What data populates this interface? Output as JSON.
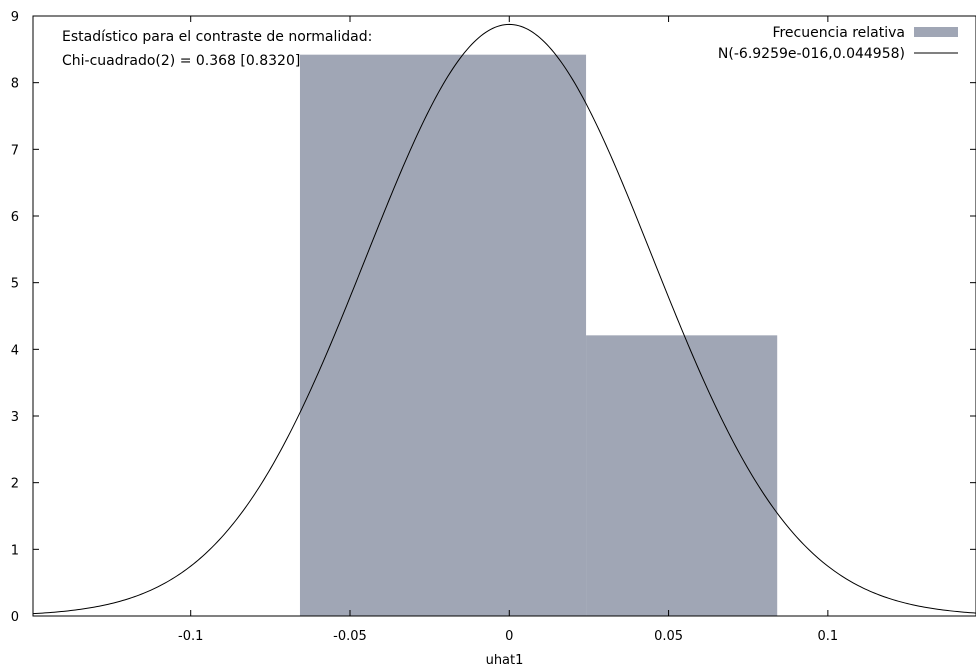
{
  "chart_data": {
    "type": "histogram",
    "xlabel": "uhat1",
    "ylabel": "",
    "xlim": [
      -0.1495,
      0.1465
    ],
    "ylim": [
      0,
      9
    ],
    "x_ticks": [
      -0.1,
      -0.05,
      0,
      0.05,
      0.1
    ],
    "x_tick_labels": [
      "-0.1",
      "-0.05",
      "0",
      "0.05",
      "0.1"
    ],
    "y_ticks": [
      0,
      1,
      2,
      3,
      4,
      5,
      6,
      7,
      8,
      9
    ],
    "y_tick_labels": [
      "0",
      "1",
      "2",
      "3",
      "4",
      "5",
      "6",
      "7",
      "8",
      "9"
    ],
    "grid": false,
    "legend_position": "top-right",
    "bars": {
      "name": "Frecuencia relativa",
      "color": "#a0a6b5",
      "bins": [
        {
          "x0": -0.0657,
          "x1": 0.0241,
          "value": 8.42
        },
        {
          "x0": 0.0241,
          "x1": 0.0841,
          "value": 4.21
        }
      ]
    },
    "curve": {
      "name": "N(-6.9259e-016,0.044958)",
      "color": "#000000",
      "mean": -6.9259e-16,
      "sd": 0.044958
    },
    "annotations": [
      "Estadístico para el contraste de normalidad:",
      "Chi-cuadrado(2) = 0.368 [0.8320]"
    ]
  }
}
